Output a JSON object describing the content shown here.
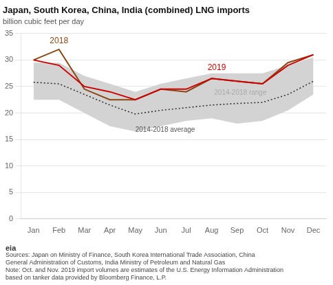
{
  "chart_data": {
    "type": "line",
    "title": "Japan, South Korea, China, India (combined) LNG imports",
    "subtitle": "billion cubic feet per day",
    "categories": [
      "Jan",
      "Feb",
      "Mar",
      "Apr",
      "May",
      "Jun",
      "Jul",
      "Aug",
      "Sep",
      "Oct",
      "Nov",
      "Dec"
    ],
    "series": [
      {
        "name": "2014-2018 range",
        "type": "range",
        "color": "#d3d3d3",
        "low": [
          22.5,
          22.5,
          20.0,
          17.5,
          16.5,
          17.5,
          18.5,
          19.0,
          18.0,
          18.5,
          20.5,
          23.5
        ],
        "high": [
          29.5,
          29.5,
          27.0,
          25.5,
          24.0,
          25.5,
          26.5,
          27.5,
          27.5,
          27.5,
          29.0,
          30.5
        ]
      },
      {
        "name": "2014-2018 average",
        "color": "#333333",
        "line_style": "dotted",
        "values": [
          25.8,
          25.5,
          23.5,
          21.5,
          19.8,
          20.5,
          21.0,
          21.5,
          21.8,
          22.0,
          23.5,
          26.0
        ]
      },
      {
        "name": "2018",
        "color": "#8B4513",
        "line_style": "solid",
        "values": [
          30.0,
          32.0,
          24.5,
          22.5,
          22.5,
          24.5,
          24.0,
          26.5,
          26.0,
          25.5,
          29.5,
          31.0
        ]
      },
      {
        "name": "2019",
        "color": "#cc0000",
        "line_style": "solid",
        "values": [
          30.0,
          29.0,
          25.0,
          24.0,
          22.5,
          24.5,
          24.5,
          26.5,
          26.0,
          25.5,
          29.0,
          31.0
        ]
      }
    ],
    "annotations": [
      {
        "text": "2018",
        "x": 1,
        "y": 32.8,
        "color": "#8B4513",
        "position": "above"
      },
      {
        "text": "2019",
        "x": 7.2,
        "y": 27.8,
        "color": "#cc0000",
        "position": "above"
      },
      {
        "text": "2014-2018 range",
        "x": 7.1,
        "y": 23.8,
        "color": "#aaaaaa",
        "position": "right"
      },
      {
        "text": "2014-2018 average",
        "x": 4.0,
        "y": 17.5,
        "color": "#555555",
        "position": "below"
      }
    ],
    "logo": "eia",
    "footnotes": [
      "Sources: Japan on Ministry of Finance, South Korea International Trade Association, China",
      "General Administration of Customs, India Ministry of Petroleum and Natural Gas",
      "Note: Oct. and Nov. 2019 import volumes are estimates of the U.S. Energy Information Administration",
      "based on tanker data provided by Bloomberg Finance, L.P."
    ],
    "ylim": [
      0,
      35
    ],
    "yticks": [
      0,
      5,
      10,
      15,
      20,
      25,
      30,
      35
    ],
    "grid": true
  }
}
